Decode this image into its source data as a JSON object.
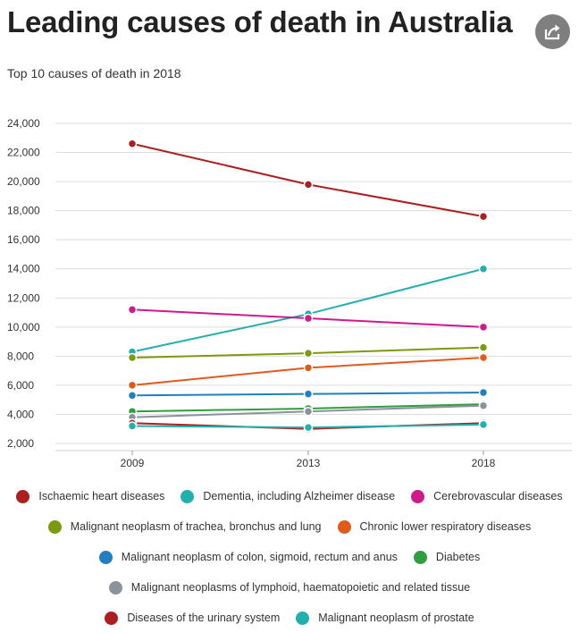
{
  "header": {
    "title": "Leading causes of death in Australia",
    "subtitle": "Top 10 causes of death in 2018",
    "share_icon": "share-icon"
  },
  "chart_data": {
    "type": "line",
    "title": "Leading causes of death in Australia",
    "subtitle": "Top 10 causes of death in 2018",
    "xlabel": "",
    "ylabel": "",
    "x": [
      "2009",
      "2013",
      "2018"
    ],
    "ylim": [
      2000,
      24000
    ],
    "yticks": [
      2000,
      4000,
      6000,
      8000,
      10000,
      12000,
      14000,
      16000,
      18000,
      20000,
      22000,
      24000
    ],
    "ytick_labels": [
      "2,000",
      "4,000",
      "6,000",
      "8,000",
      "10,000",
      "12,000",
      "14,000",
      "16,000",
      "18,000",
      "20,000",
      "22,000",
      "24,000"
    ],
    "grid": true,
    "legend_position": "bottom",
    "series": [
      {
        "name": "Ischaemic heart diseases",
        "color": "#ad1f1f",
        "values": [
          22600,
          19800,
          17600
        ]
      },
      {
        "name": "Dementia, including Alzheimer disease",
        "color": "#21b0ae",
        "values": [
          8300,
          10900,
          14000
        ]
      },
      {
        "name": "Cerebrovascular diseases",
        "color": "#d01a8c",
        "values": [
          11200,
          10600,
          10000
        ]
      },
      {
        "name": "Malignant neoplasm of trachea, bronchus and lung",
        "color": "#7c9a0f",
        "values": [
          7900,
          8200,
          8600
        ]
      },
      {
        "name": "Chronic lower respiratory diseases",
        "color": "#e05a1a",
        "values": [
          6000,
          7200,
          7900
        ]
      },
      {
        "name": "Malignant neoplasm of colon, sigmoid, rectum and anus",
        "color": "#1f7fc0",
        "values": [
          5300,
          5400,
          5500
        ]
      },
      {
        "name": "Diabetes",
        "color": "#2e9e3e",
        "values": [
          4200,
          4400,
          4700
        ]
      },
      {
        "name": "Malignant neoplasms of lymphoid, haematopoietic and related tissue",
        "color": "#8a9399",
        "values": [
          3800,
          4200,
          4600
        ]
      },
      {
        "name": "Diseases of the urinary system",
        "color": "#ad1f1f",
        "values": [
          3400,
          3000,
          3400
        ]
      },
      {
        "name": "Malignant neoplasm of prostate",
        "color": "#21b0ae",
        "values": [
          3200,
          3100,
          3300
        ]
      }
    ]
  },
  "legend_rows": [
    [
      0,
      1,
      2
    ],
    [
      3,
      4
    ],
    [
      5,
      6
    ],
    [
      7
    ],
    [
      8,
      9
    ]
  ]
}
